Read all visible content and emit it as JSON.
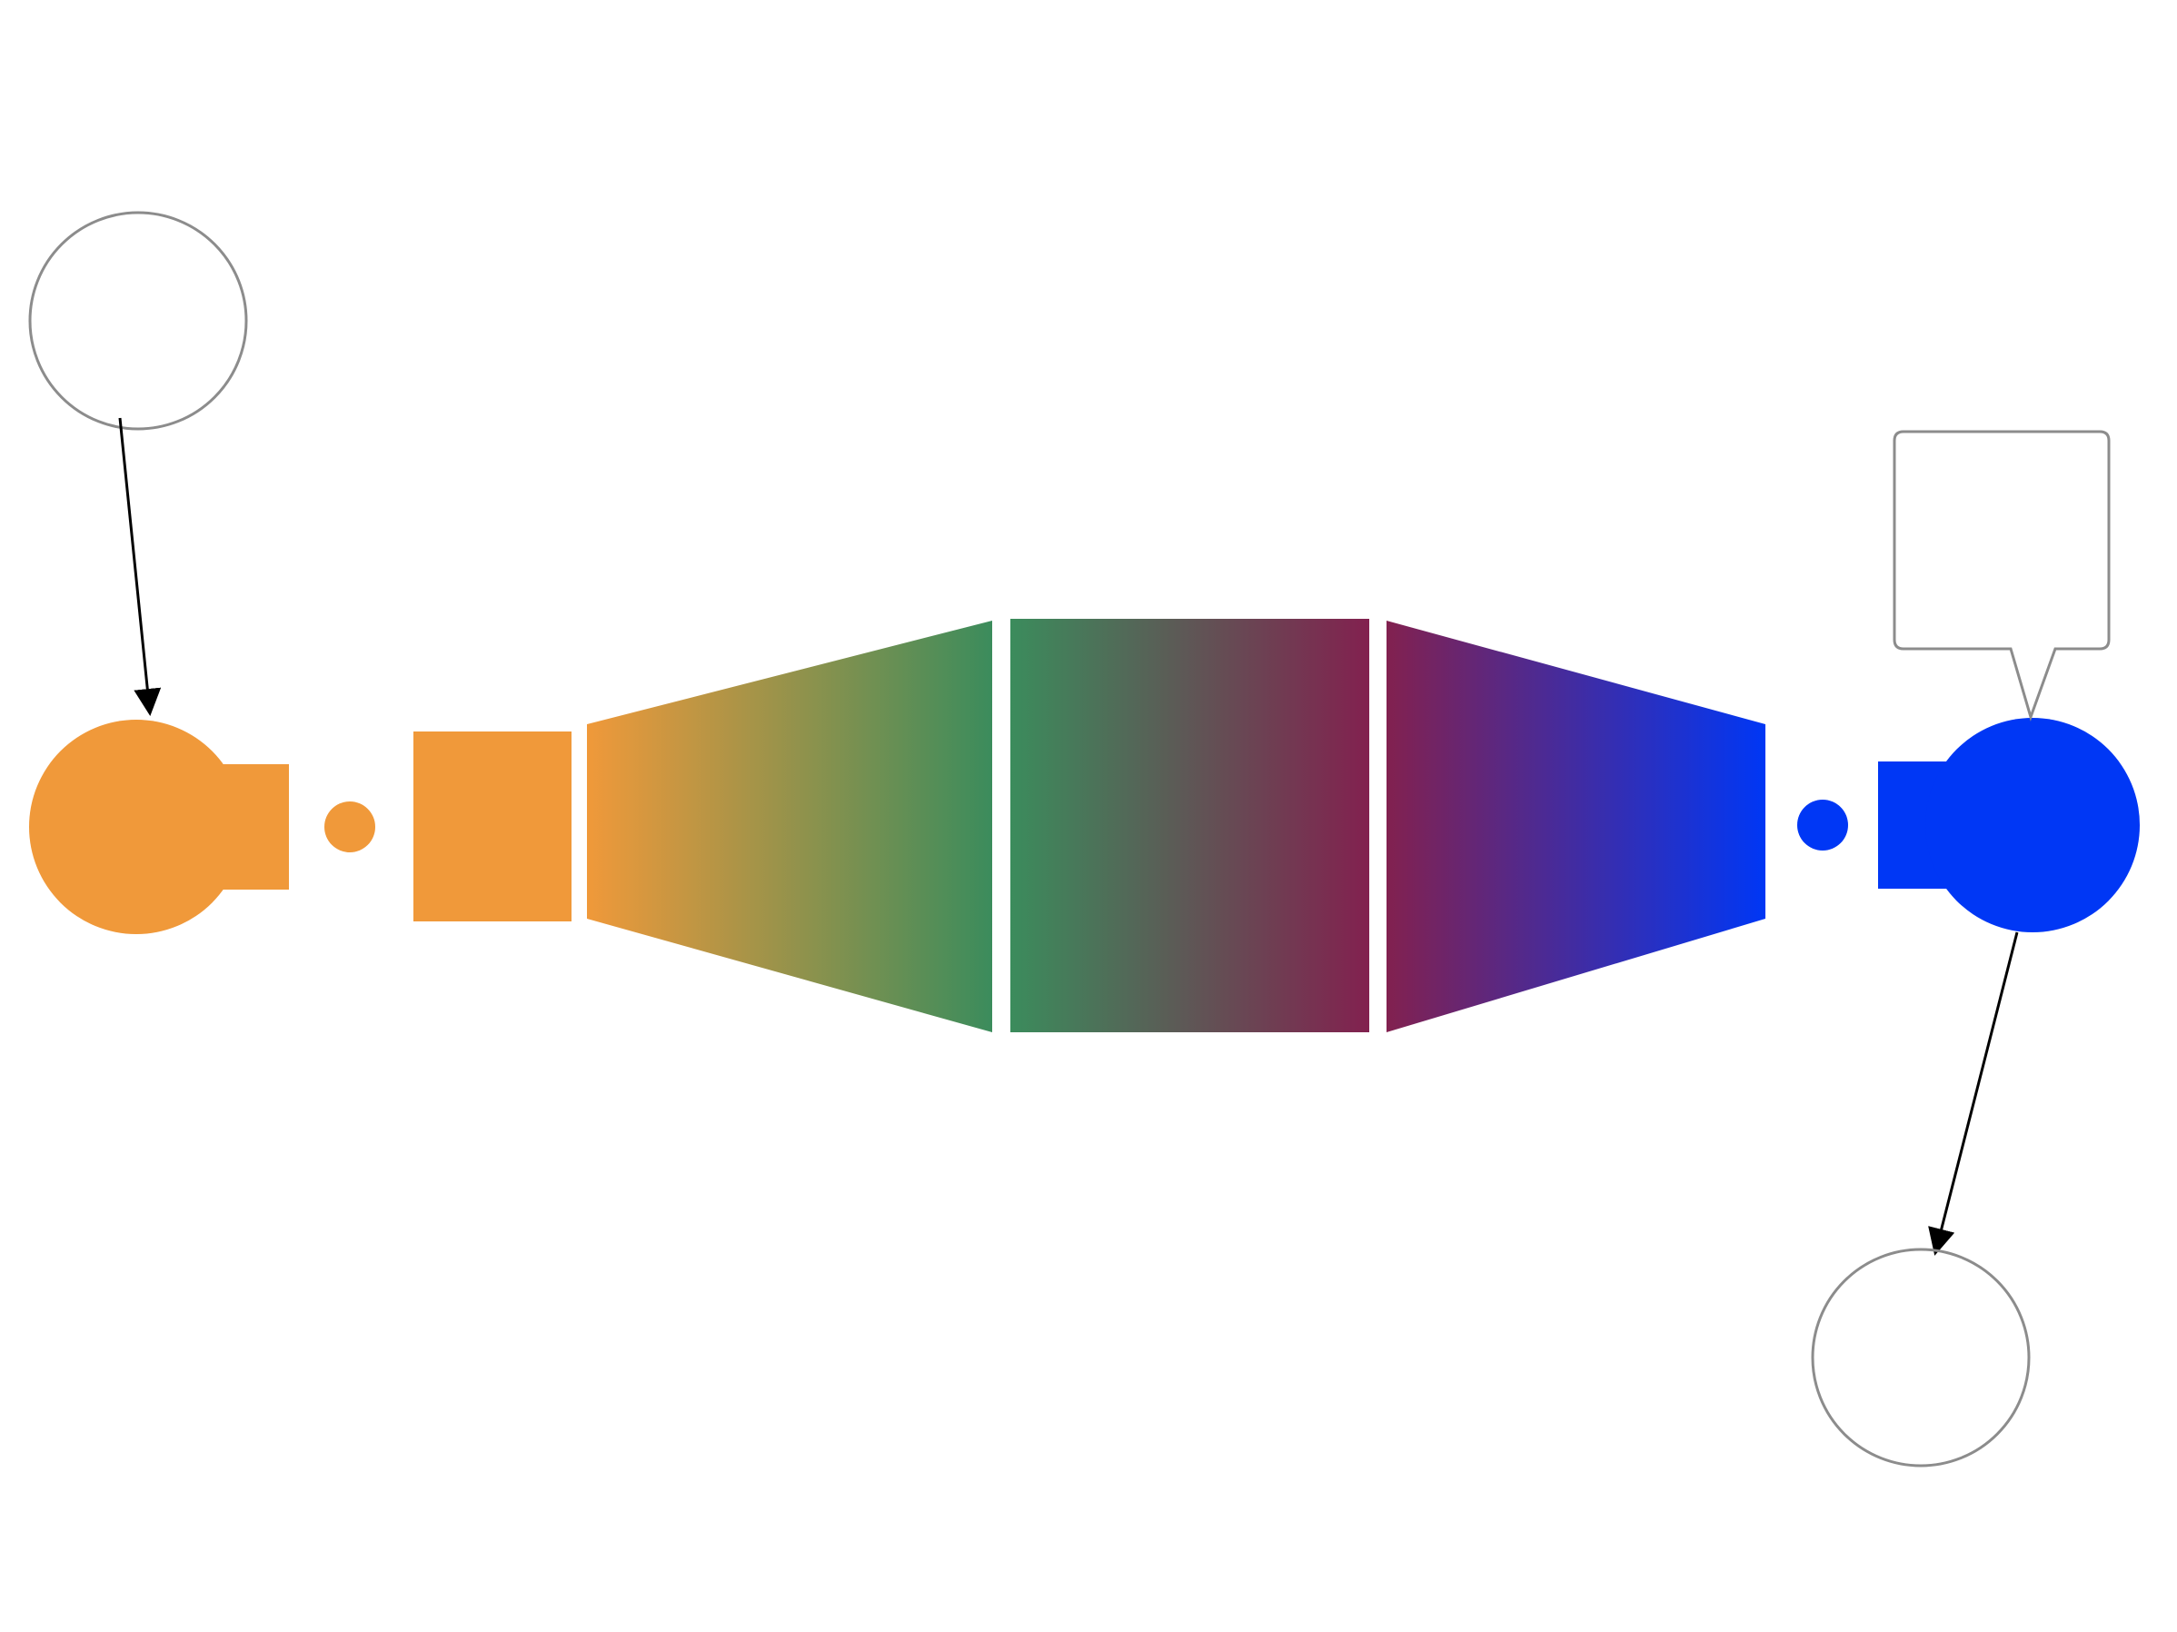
{
  "colors": {
    "background": "#ffffff",
    "start": "#f0993a",
    "green": "#3b8c5c",
    "maroon": "#82214f",
    "end": "#0037f5",
    "callout_stroke": "#8c8c8c",
    "arrow": "#000000"
  },
  "callouts": {
    "top_left_circle": "",
    "right_speech_box": "",
    "bottom_right_circle": ""
  }
}
